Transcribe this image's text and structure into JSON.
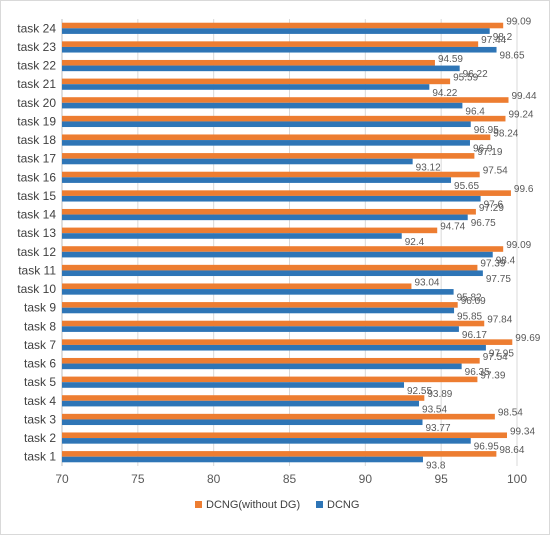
{
  "chart_data": {
    "type": "bar",
    "orientation": "horizontal",
    "categories": [
      "task 1",
      "task 2",
      "task 3",
      "task 4",
      "task 5",
      "task 6",
      "task 7",
      "task 8",
      "task 9",
      "task 10",
      "task 11",
      "task 12",
      "task 13",
      "task 14",
      "task 15",
      "task 16",
      "task 17",
      "task 18",
      "task 19",
      "task 20",
      "task 21",
      "task 22",
      "task 23",
      "task 24"
    ],
    "series": [
      {
        "name": "DCNG(without DG)",
        "color": "#ed7d31",
        "values": [
          98.64,
          99.34,
          98.54,
          93.89,
          97.39,
          97.54,
          99.69,
          97.84,
          96.09,
          93.04,
          97.39,
          99.09,
          94.74,
          97.29,
          99.6,
          97.54,
          97.19,
          98.24,
          99.24,
          99.44,
          95.59,
          94.59,
          97.44,
          99.09
        ]
      },
      {
        "name": "DCNG",
        "color": "#2e75b6",
        "values": [
          93.8,
          96.95,
          93.77,
          93.54,
          92.55,
          96.35,
          97.95,
          96.17,
          95.85,
          95.82,
          97.75,
          98.4,
          92.4,
          96.75,
          97.6,
          95.65,
          93.12,
          96.9,
          96.95,
          96.4,
          94.22,
          96.22,
          98.65,
          98.2
        ]
      }
    ],
    "xlim": [
      70,
      100
    ],
    "xticks": [
      70,
      75,
      80,
      85,
      90,
      95,
      100
    ],
    "grid": true,
    "legend_position": "bottom",
    "title": "",
    "xlabel": "",
    "ylabel": ""
  }
}
